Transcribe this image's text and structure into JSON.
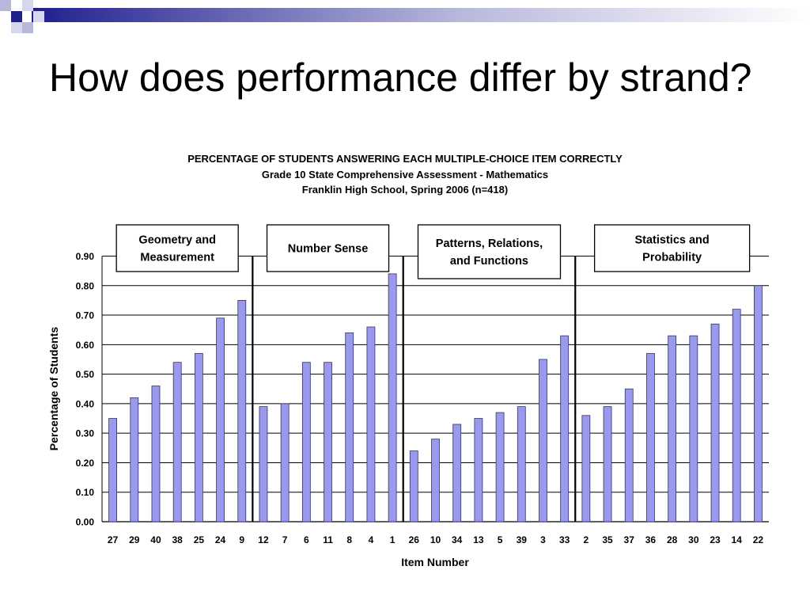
{
  "slide": {
    "title": "How does performance differ by strand?",
    "colors": {
      "accent_dark": "#1f1f8f",
      "accent_light": "#b8b8dc",
      "bar_fill": "#9999ee",
      "bar_stroke": "#333366"
    }
  },
  "chart_data": {
    "type": "bar",
    "title": "PERCENTAGE OF STUDENTS ANSWERING EACH MULTIPLE-CHOICE ITEM CORRECTLY",
    "subtitle": "Grade 10 State Comprehensive Assessment - Mathematics",
    "subtitle2": "Franklin High School, Spring 2006 (n=418)",
    "xlabel": "Item Number",
    "ylabel": "Percentage of Students",
    "ylim": [
      0,
      0.9
    ],
    "yticks": [
      "0.00",
      "0.10",
      "0.20",
      "0.30",
      "0.40",
      "0.50",
      "0.60",
      "0.70",
      "0.80",
      "0.90"
    ],
    "grid": true,
    "categories": [
      "27",
      "29",
      "40",
      "38",
      "25",
      "24",
      "9",
      "12",
      "7",
      "6",
      "11",
      "8",
      "4",
      "1",
      "26",
      "10",
      "34",
      "13",
      "5",
      "39",
      "3",
      "33",
      "2",
      "35",
      "37",
      "36",
      "28",
      "30",
      "23",
      "14",
      "22"
    ],
    "values": [
      0.35,
      0.42,
      0.46,
      0.54,
      0.57,
      0.69,
      0.75,
      0.39,
      0.4,
      0.54,
      0.54,
      0.64,
      0.66,
      0.84,
      0.24,
      0.28,
      0.33,
      0.35,
      0.37,
      0.39,
      0.55,
      0.63,
      0.36,
      0.39,
      0.45,
      0.57,
      0.63,
      0.63,
      0.67,
      0.72,
      0.8
    ],
    "groups": [
      {
        "label": "Geometry and Measurement",
        "start": 0,
        "count": 7
      },
      {
        "label": "Number Sense",
        "start": 7,
        "count": 7
      },
      {
        "label": "Patterns, Relations, and Functions",
        "start": 14,
        "count": 8
      },
      {
        "label": "Statistics and Probability",
        "start": 22,
        "count": 9
      }
    ]
  }
}
